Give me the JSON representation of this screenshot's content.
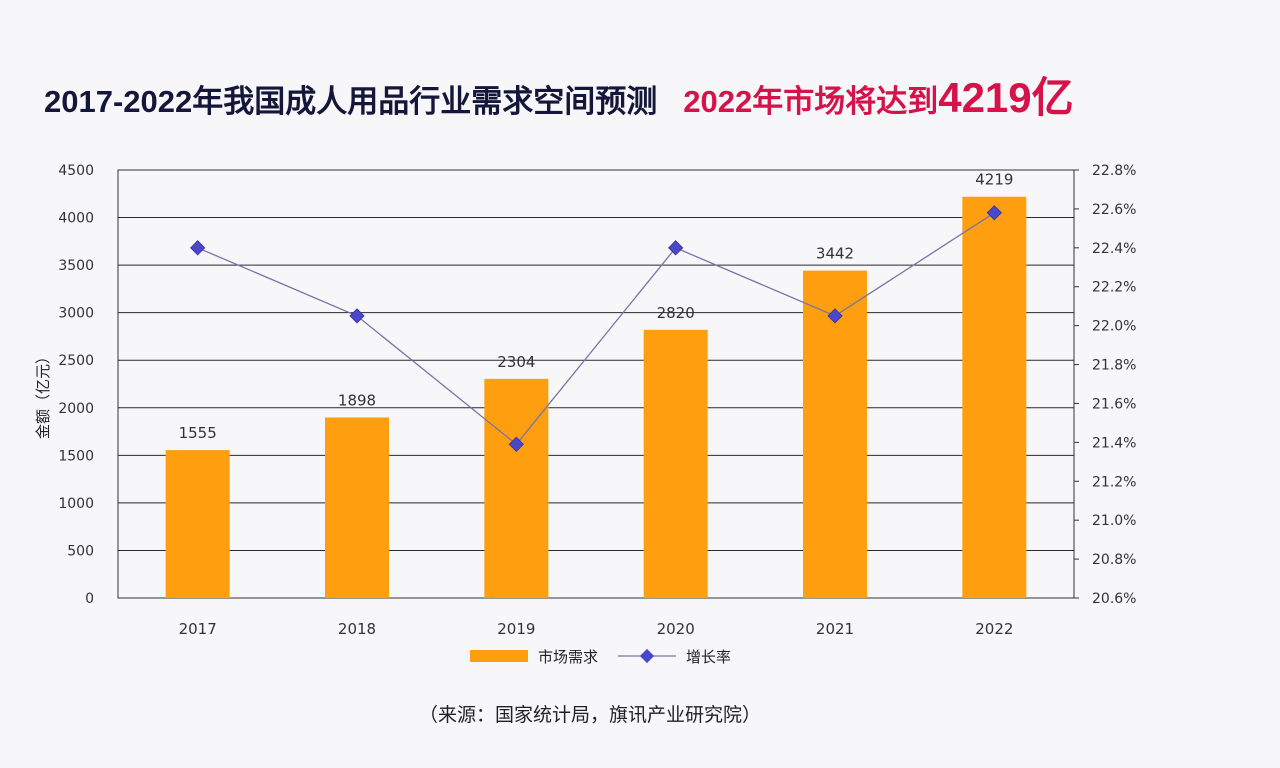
{
  "header": {
    "title": "2017-2022年我国成人用品行业需求空间预测",
    "highlight": "2022年市场将达到",
    "highlight_value": "4219亿"
  },
  "chart_data": {
    "type": "bar",
    "categories": [
      "2017",
      "2018",
      "2019",
      "2020",
      "2021",
      "2022"
    ],
    "series": [
      {
        "name": "市场需求",
        "type": "bar",
        "axis": "left",
        "values": [
          1555,
          1898,
          2304,
          2820,
          3442,
          4219
        ],
        "labels": [
          "1555",
          "1898",
          "2304",
          "2820",
          "3442",
          "4219"
        ]
      },
      {
        "name": "增长率",
        "type": "line",
        "axis": "right",
        "values": [
          22.4,
          22.05,
          21.39,
          22.4,
          22.05,
          22.58
        ]
      }
    ],
    "ylabel": "金额（亿元）",
    "ylim": [
      0,
      4500
    ],
    "yticks": [
      "0",
      "500",
      "1000",
      "1500",
      "2000",
      "2500",
      "3000",
      "3500",
      "4000",
      "4500"
    ],
    "y2lim": [
      20.6,
      22.8
    ],
    "y2ticks": [
      "20.6%",
      "20.8%",
      "21.0%",
      "21.2%",
      "21.4%",
      "21.6%",
      "21.8%",
      "22.0%",
      "22.2%",
      "22.4%",
      "22.6%",
      "22.8%"
    ],
    "grid": true,
    "legend_position": "bottom"
  },
  "source": "（来源：国家统计局，旗讯产业研究院）",
  "colors": {
    "bar": "#ff9e0f",
    "line": "#7874a8",
    "marker": "#4a47c9",
    "highlight": "#d6124a"
  }
}
